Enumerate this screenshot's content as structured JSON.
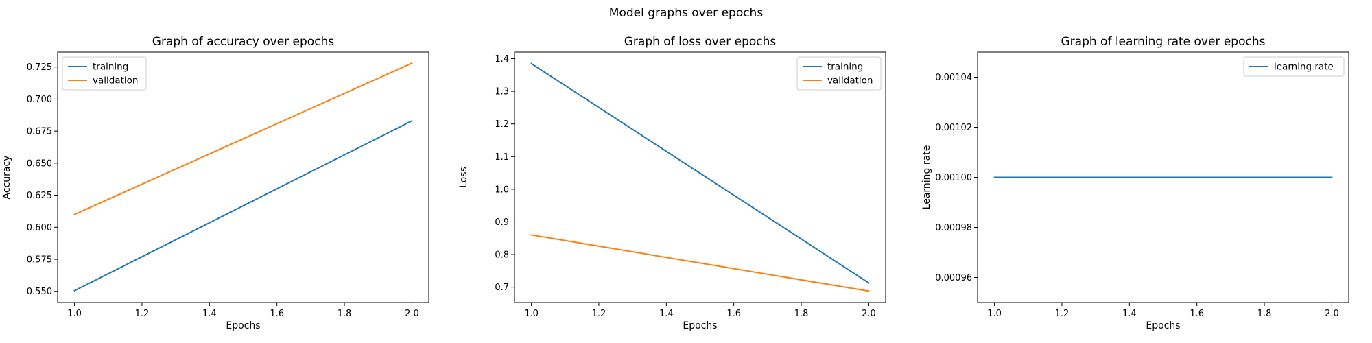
{
  "figure": {
    "suptitle": "Model graphs over epochs",
    "colors": {
      "training": "#1f77b4",
      "validation": "#ff7f0e"
    }
  },
  "chart_data": [
    {
      "type": "line",
      "title": "Graph of accuracy over epochs",
      "xlabel": "Epochs",
      "ylabel": "Accuracy",
      "xlim": [
        0.95,
        2.05
      ],
      "ylim": [
        0.5413,
        0.7366
      ],
      "xticks": [
        1.0,
        1.2,
        1.4,
        1.6,
        1.8,
        2.0
      ],
      "xtick_labels": [
        "1.0",
        "1.2",
        "1.4",
        "1.6",
        "1.8",
        "2.0"
      ],
      "yticks": [
        0.55,
        0.575,
        0.6,
        0.625,
        0.65,
        0.675,
        0.7,
        0.725
      ],
      "ytick_labels": [
        "0.550",
        "0.575",
        "0.600",
        "0.625",
        "0.650",
        "0.675",
        "0.700",
        "0.725"
      ],
      "legend_position": "upper-left",
      "grid": false,
      "series": [
        {
          "name": "training",
          "color": "#1f77b4",
          "x": [
            1,
            2
          ],
          "y": [
            0.5505,
            0.683
          ]
        },
        {
          "name": "validation",
          "color": "#ff7f0e",
          "x": [
            1,
            2
          ],
          "y": [
            0.61,
            0.728
          ]
        }
      ]
    },
    {
      "type": "line",
      "title": "Graph of loss over epochs",
      "xlabel": "Epochs",
      "ylabel": "Loss",
      "xlim": [
        0.95,
        2.05
      ],
      "ylim": [
        0.653,
        1.42
      ],
      "xticks": [
        1.0,
        1.2,
        1.4,
        1.6,
        1.8,
        2.0
      ],
      "xtick_labels": [
        "1.0",
        "1.2",
        "1.4",
        "1.6",
        "1.8",
        "2.0"
      ],
      "yticks": [
        0.7,
        0.8,
        0.9,
        1.0,
        1.1,
        1.2,
        1.3,
        1.4
      ],
      "ytick_labels": [
        "0.7",
        "0.8",
        "0.9",
        "1.0",
        "1.1",
        "1.2",
        "1.3",
        "1.4"
      ],
      "legend_position": "upper-right",
      "grid": false,
      "series": [
        {
          "name": "training",
          "color": "#1f77b4",
          "x": [
            1,
            2
          ],
          "y": [
            1.385,
            0.713
          ]
        },
        {
          "name": "validation",
          "color": "#ff7f0e",
          "x": [
            1,
            2
          ],
          "y": [
            0.86,
            0.688
          ]
        }
      ]
    },
    {
      "type": "line",
      "title": "Graph of learning rate over epochs",
      "xlabel": "Epochs",
      "ylabel": "Learning rate",
      "xlim": [
        0.95,
        2.05
      ],
      "ylim": [
        0.00095,
        0.00105
      ],
      "xticks": [
        1.0,
        1.2,
        1.4,
        1.6,
        1.8,
        2.0
      ],
      "xtick_labels": [
        "1.0",
        "1.2",
        "1.4",
        "1.6",
        "1.8",
        "2.0"
      ],
      "yticks": [
        0.00096,
        0.00098,
        0.001,
        0.00102,
        0.00104
      ],
      "ytick_labels": [
        "0.00096",
        "0.00098",
        "0.00100",
        "0.00102",
        "0.00104"
      ],
      "legend_position": "upper-right",
      "grid": false,
      "series": [
        {
          "name": "learning rate",
          "color": "#1f77b4",
          "x": [
            1,
            2
          ],
          "y": [
            0.001,
            0.001
          ]
        }
      ]
    }
  ]
}
